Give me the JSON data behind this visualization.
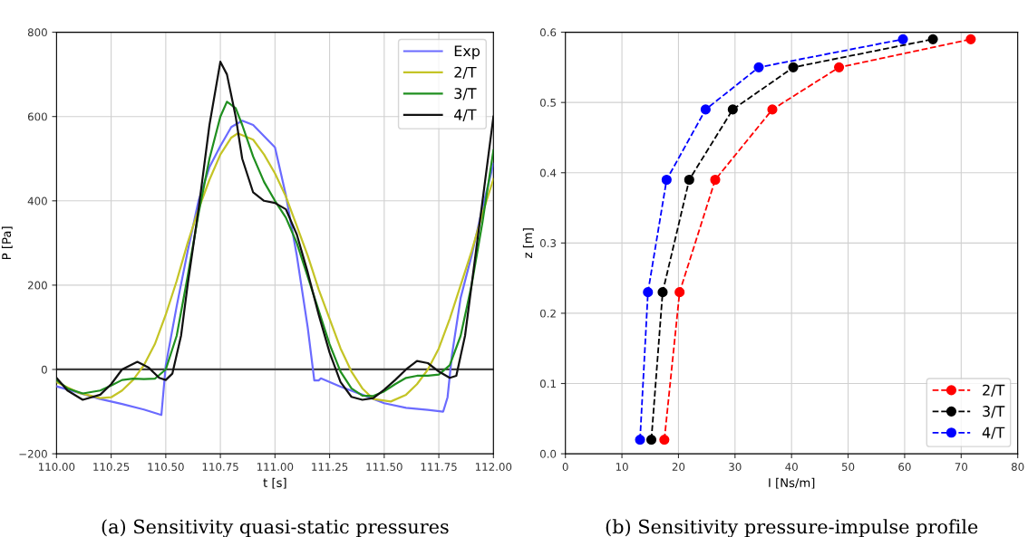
{
  "chart_data": [
    {
      "type": "line",
      "title": "(a) Sensitivity quasi-static pressures",
      "xlabel": "t [s]",
      "ylabel": "P [Pa]",
      "xlim": [
        110.0,
        112.0
      ],
      "xticks": [
        {
          "value": 110.0,
          "label": "110.00"
        },
        {
          "value": 110.25,
          "label": "110.25"
        },
        {
          "value": 110.5,
          "label": "110.50"
        },
        {
          "value": 110.75,
          "label": "110.75"
        },
        {
          "value": 111.0,
          "label": "111.00"
        },
        {
          "value": 111.25,
          "label": "111.25"
        },
        {
          "value": 111.5,
          "label": "111.50"
        },
        {
          "value": 111.75,
          "label": "111.75"
        },
        {
          "value": 112.0,
          "label": "112.00"
        }
      ],
      "ylim": [
        -200,
        800
      ],
      "yticks": [
        {
          "value": -200,
          "label": "−200"
        },
        0,
        200,
        400,
        600,
        800
      ],
      "grid": true,
      "legend": "top right",
      "line_style": "solid",
      "ref_lines": [
        {
          "axis": "y",
          "value": 0,
          "color": "#404040"
        }
      ],
      "series": [
        {
          "name": "Exp",
          "color": "#6b6bff",
          "x": [
            110.0,
            110.1,
            110.2,
            110.3,
            110.4,
            110.48,
            110.5,
            110.55,
            110.6,
            110.65,
            110.7,
            110.75,
            110.8,
            110.85,
            110.9,
            111.0,
            111.05,
            111.1,
            111.15,
            111.18,
            111.2,
            111.21,
            111.3,
            111.4,
            111.5,
            111.6,
            111.7,
            111.77,
            111.79,
            111.81,
            111.85,
            111.9,
            111.95,
            112.0
          ],
          "values": [
            -40,
            -55,
            -70,
            -82,
            -95,
            -108,
            10,
            150,
            280,
            400,
            480,
            530,
            575,
            590,
            580,
            527,
            413,
            270,
            99,
            -26,
            -26,
            -21,
            -41,
            -60,
            -80,
            -91,
            -96,
            -100,
            -66,
            34,
            170,
            270,
            384,
            488
          ]
        },
        {
          "name": "2/T",
          "color": "#c4c426",
          "x": [
            110.0,
            110.1,
            110.2,
            110.25,
            110.3,
            110.35,
            110.4,
            110.45,
            110.5,
            110.55,
            110.6,
            110.65,
            110.7,
            110.75,
            110.8,
            110.83,
            110.9,
            110.95,
            111.0,
            111.05,
            111.1,
            111.15,
            111.2,
            111.25,
            111.3,
            111.35,
            111.4,
            111.45,
            111.53,
            111.6,
            111.65,
            111.7,
            111.75,
            111.8,
            111.85,
            111.9,
            111.95,
            112.0
          ],
          "values": [
            -30,
            -55,
            -68,
            -66,
            -50,
            -25,
            10,
            60,
            130,
            210,
            300,
            380,
            450,
            510,
            550,
            560,
            545,
            510,
            465,
            410,
            340,
            270,
            190,
            120,
            50,
            -5,
            -45,
            -70,
            -76,
            -60,
            -35,
            0,
            50,
            120,
            200,
            280,
            370,
            452
          ]
        },
        {
          "name": "3/T",
          "color": "#1f8f1f",
          "x": [
            110.0,
            110.05,
            110.12,
            110.2,
            110.25,
            110.3,
            110.35,
            110.4,
            110.45,
            110.5,
            110.55,
            110.6,
            110.65,
            110.7,
            110.75,
            110.78,
            110.82,
            110.85,
            110.9,
            110.95,
            111.0,
            111.05,
            111.1,
            111.15,
            111.2,
            111.25,
            111.3,
            111.35,
            111.4,
            111.45,
            111.5,
            111.55,
            111.6,
            111.65,
            111.7,
            111.75,
            111.8,
            111.85,
            111.9,
            111.95,
            112.0
          ],
          "values": [
            -25,
            -45,
            -57,
            -50,
            -38,
            -25,
            -22,
            -23,
            -22,
            0,
            80,
            220,
            370,
            500,
            600,
            635,
            620,
            580,
            505,
            445,
            400,
            360,
            300,
            220,
            140,
            60,
            -5,
            -45,
            -62,
            -63,
            -52,
            -35,
            -20,
            -15,
            -15,
            -12,
            10,
            80,
            200,
            350,
            520
          ]
        },
        {
          "name": "4/T",
          "color": "#111111",
          "x": [
            110.0,
            110.05,
            110.12,
            110.2,
            110.25,
            110.3,
            110.37,
            110.42,
            110.47,
            110.5,
            110.53,
            110.57,
            110.6,
            110.65,
            110.7,
            110.75,
            110.78,
            110.82,
            110.85,
            110.9,
            110.95,
            111.0,
            111.05,
            111.1,
            111.15,
            111.2,
            111.25,
            111.3,
            111.35,
            111.4,
            111.45,
            111.5,
            111.55,
            111.6,
            111.65,
            111.7,
            111.75,
            111.8,
            111.83,
            111.87,
            111.9,
            111.95,
            112.0
          ],
          "values": [
            -20,
            -50,
            -72,
            -60,
            -35,
            0,
            18,
            5,
            -20,
            -25,
            -10,
            80,
            200,
            380,
            580,
            730,
            700,
            600,
            500,
            420,
            400,
            395,
            380,
            320,
            230,
            130,
            40,
            -30,
            -65,
            -72,
            -68,
            -48,
            -25,
            0,
            20,
            15,
            -5,
            -20,
            -15,
            80,
            200,
            400,
            600
          ]
        }
      ]
    },
    {
      "type": "line",
      "title": "(b) Sensitivity pressure-impulse profile",
      "xlabel": "I [Ns/m]",
      "ylabel": "z [m]",
      "xlim": [
        0,
        80
      ],
      "xticks": [
        0,
        10,
        20,
        30,
        40,
        50,
        60,
        70,
        80
      ],
      "ylim": [
        0.0,
        0.6
      ],
      "yticks": [
        {
          "value": 0.0,
          "label": "0.0"
        },
        0.1,
        0.2,
        0.3,
        0.4,
        0.5,
        0.6
      ],
      "grid": true,
      "legend": "bottom right",
      "marker": "circle",
      "line_style": "dashed",
      "series": [
        {
          "name": "2/T",
          "color": "#ff0000",
          "x": [
            17.5,
            20.2,
            26.5,
            36.6,
            48.4,
            71.7
          ],
          "values": [
            0.02,
            0.23,
            0.39,
            0.49,
            0.55,
            0.59
          ]
        },
        {
          "name": "3/T",
          "color": "#000000",
          "x": [
            15.2,
            17.2,
            21.9,
            29.6,
            40.3,
            65.0
          ],
          "values": [
            0.02,
            0.23,
            0.39,
            0.49,
            0.55,
            0.59
          ]
        },
        {
          "name": "4/T",
          "color": "#0000ff",
          "x": [
            13.2,
            14.6,
            17.9,
            24.8,
            34.2,
            59.7
          ],
          "values": [
            0.02,
            0.23,
            0.39,
            0.49,
            0.55,
            0.59
          ]
        }
      ]
    }
  ]
}
